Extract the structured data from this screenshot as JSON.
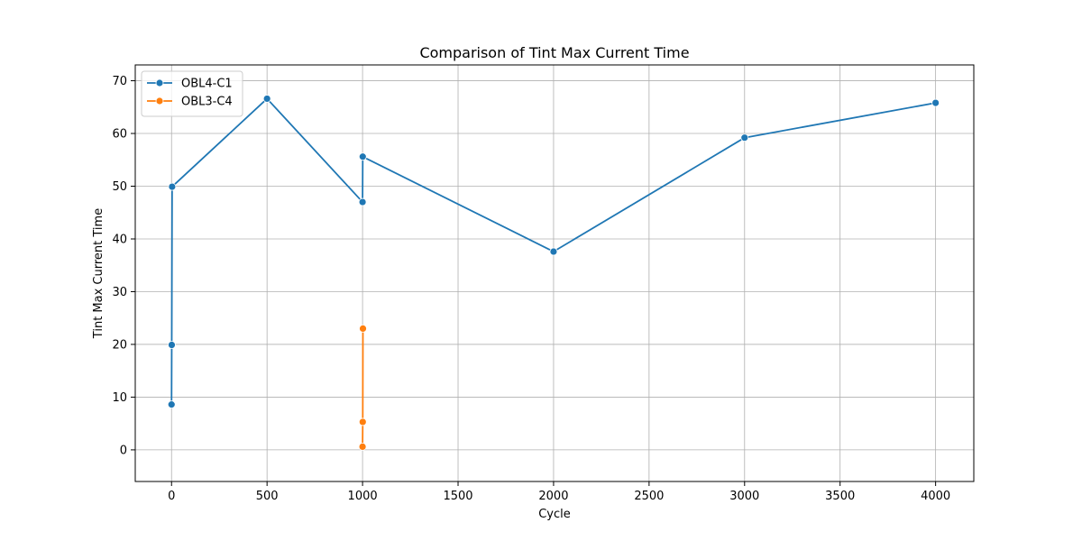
{
  "chart_data": {
    "type": "line",
    "title": "Comparison of Tint Max Current Time",
    "xlabel": "Cycle",
    "ylabel": "Tint Max Current Time",
    "xlim": [
      -190,
      4200
    ],
    "ylim": [
      -6,
      73
    ],
    "xticks": [
      0,
      500,
      1000,
      1500,
      2000,
      2500,
      3000,
      3500,
      4000
    ],
    "yticks": [
      0,
      10,
      20,
      30,
      40,
      50,
      60,
      70
    ],
    "grid": true,
    "legend_position": "top-left",
    "series": [
      {
        "name": "OBL4-C1",
        "color": "#1f77b4",
        "x": [
          0,
          1,
          3,
          500,
          1000,
          1001,
          2000,
          3000,
          4000
        ],
        "y": [
          8.6,
          19.9,
          49.9,
          66.6,
          47.0,
          55.6,
          37.6,
          59.2,
          65.8
        ]
      },
      {
        "name": "OBL3-C4",
        "color": "#ff7f0e",
        "x": [
          1000,
          1001,
          1002
        ],
        "y": [
          0.6,
          5.3,
          23.0
        ]
      }
    ]
  }
}
